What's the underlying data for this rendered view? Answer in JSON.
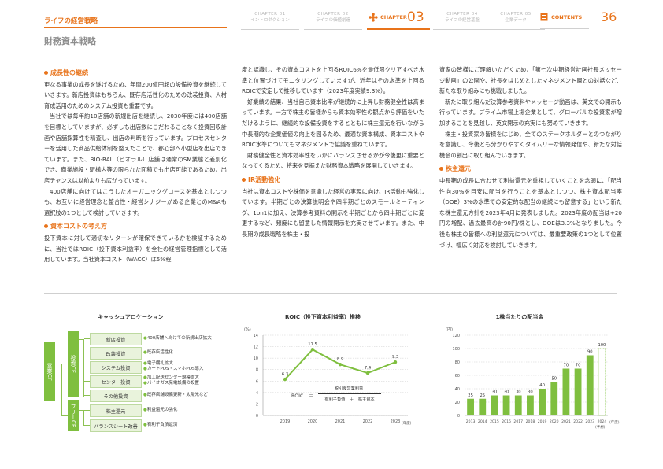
{
  "header": {
    "doc_label": "ライフの経営戦略",
    "section_title": "財務資本戦略",
    "chapters": [
      {
        "num": "CHAPTER 01",
        "name": "イントロダクション"
      },
      {
        "num": "CHAPTER 02",
        "name": "ライフの価値創造"
      },
      {
        "num": "CHAPTER 04",
        "name": "ライフの経営基盤"
      },
      {
        "num": "CHAPTER 05",
        "name": "企業データ"
      }
    ],
    "active_chapter": {
      "label": "CHAPTER",
      "num": "03"
    },
    "contents": "CONTENTS",
    "page_number": "36"
  },
  "body": {
    "h_growth": "成長性の継続",
    "p_growth_1": "更なる事業の成長を遂げるため、年間200億円超の設備投資を継続していきます。新店投資はもちろん、既存店活性化のための改装投資、人材育成活用のためのシステム投資も重要です。",
    "p_growth_2": "当社では毎年約10店舗の新規出店を継続し、2030年度には400店舗を目標としていますが、必ずしも出店数にこだわることなく投資回収計画や店舗採算性を精査し、出店の判断を行っています。プロセスセンターを活用した商品供給体制を整えたことで、都心部へ小型店を出店できています。また、BIO-RAL（ビオラル）店舗は通常のSM業態と差別化でき、商業施設・駅構内等の限られた面積でも出店可能であるため、出店チャンスは以前よりも広がっています。",
    "p_growth_3": "400店舗に向けてはこうしたオーガニックグロースを基本としつつも、お互いに経営理念と整合性・経営シナジーがある企業とのM&Aも選択肢の1つとして検討していきます。",
    "h_capital": "資本コストの考え方",
    "p_capital": "投下資本に対して適切なリターンが確保できているかを検証するために、当社ではROIC（投下資本利益率）を全社の経営管理指標として活用しています。当社資本コスト（WACC）は5%程",
    "p_col2_1": "度と認識し、その資本コストを上回るROIC6%を最低限クリアすべき水準と位置づけてモニタリングしていますが、近年はその水準を上回るROICで安定して推移しています（2023年度実績9.3%）。",
    "p_col2_2": "好業績の結果、当社自己資本比率が継続的に上昇し財務健全性は高まっています。一方で株主の皆様からも資本効率性の観点から評価をいただけるように、継続的な設備投資をするとともに株主還元を行いながら中長期的な企業価値の向上を図るため、最適な資本構成、資本コストやROIC水準についてもマネジメントで協議を重ねています。",
    "p_col2_3": "財務健全性と資本効率性をいかにバランスさせるかが今後更に重要となってくるため、将来を見据えた財務資本戦略を展開していきます。",
    "h_ir": "IR活動強化",
    "p_ir": "当社は資本コストや株価を意識した経営の実現に向け、IR活動も強化しています。半期ごとの決算説明会や四半期ごとのスモールミーティング、1on1に加え、決算参考資料の開示を半期ごとから四半期ごとに変更するなど、頻度にも留意した情報開示を充実させています。また、中長期の成長戦略を株主・投",
    "p_col3_1": "資家の皆様にご理解いただくため、「第七次中期経営計画社長メッセージ動画」の公開や、社長をはじめとしたマネジメント層との対話など、新たな取り組みにも挑戦しました。",
    "p_col3_2": "新たに取り組んだ決算参考資料やメッセージ動画は、英文での開示も行っています。プライム市場上場企業として、グローバルな投資家が増加することを見越し、英文開示の充実にも努めていきます。",
    "p_col3_3": "株主・投資家の皆様をはじめ、全てのステークホルダーとのつながりを意識し、今後とも分かりやすくタイムリーな情報発信や、新たな対話機会の創出に取り組んでいきます。",
    "h_return": "株主還元",
    "p_return": "中長期の成長に合わせて利益還元を重視していくことを念頭に、「配当性向30%を目安に配当を行うことを基本としつつ、株主資本配当率（DOE）3%の水準での安定的な配当の継続にも留意する」という新たな株主還元方針を2023年4月に発表しました。2023年度の配当は+20円の増配、過去最高の計90円/株とし、DOEは3.3%となりました。今後も株主の皆様への利益還元については、最重要政策の1つとして位置づけ、幅広く対応を検討していきます。"
  },
  "cash_allocation": {
    "title": "キャッシュアロケーション",
    "source_label": "営業CF",
    "invest_label": "投資CF",
    "free_label": "フリーCF",
    "items": [
      {
        "label": "新店投資",
        "note": "400店舗へ向けての新規出店拡大"
      },
      {
        "label": "改装投資",
        "note": "既存店活性化"
      },
      {
        "label": "システム投資",
        "note": "電子棚札拡大\nカートPOS・スマホPOS導入"
      },
      {
        "label": "センター投資",
        "note": "加工配送センター規模拡大\nバイオガス発電設備の設置"
      },
      {
        "label": "その他投資",
        "note": "既存店舗設備更新・太陽光など"
      },
      {
        "label": "株主還元",
        "note": "利益還元の強化"
      },
      {
        "label": "バランスシート改善",
        "note": "有利子負債返済"
      }
    ]
  },
  "colors": {
    "accent": "#e8731a",
    "green": "#7fbf3f",
    "light_green": "#e9f3dc"
  },
  "chart_data": [
    {
      "type": "line",
      "title": "ROIC（投下資本利益率）推移",
      "ylabel": "(%)",
      "x": [
        "2019",
        "2020",
        "2021",
        "2022",
        "2023"
      ],
      "x_suffix": "(年度)",
      "y": [
        6.3,
        11.5,
        8.9,
        7.4,
        9.3
      ],
      "ylim": [
        0,
        14
      ],
      "yticks": [
        0,
        2,
        4,
        6,
        8,
        10,
        12,
        14
      ],
      "formula": {
        "lhs": "ROIC",
        "eq": "＝",
        "numerator": "税引後営業利益",
        "denominator_a": "有利子負債",
        "plus": "＋",
        "denominator_b": "株主資本"
      },
      "grid": true
    },
    {
      "type": "bar",
      "title": "1株当たりの配当金",
      "ylabel": "(円)",
      "categories": [
        "2013",
        "2014",
        "2015",
        "2016",
        "2017",
        "2018",
        "2019",
        "2020",
        "2021",
        "2022",
        "2023",
        "2024"
      ],
      "values": [
        25,
        25,
        30,
        30,
        30,
        30,
        40,
        50,
        70,
        70,
        90,
        100
      ],
      "forecast_note": "(予想)",
      "x_suffix": "(年度)",
      "ylim": [
        0,
        120
      ],
      "yticks": [
        0,
        20,
        40,
        60,
        80,
        100,
        120
      ],
      "grid": true
    }
  ]
}
